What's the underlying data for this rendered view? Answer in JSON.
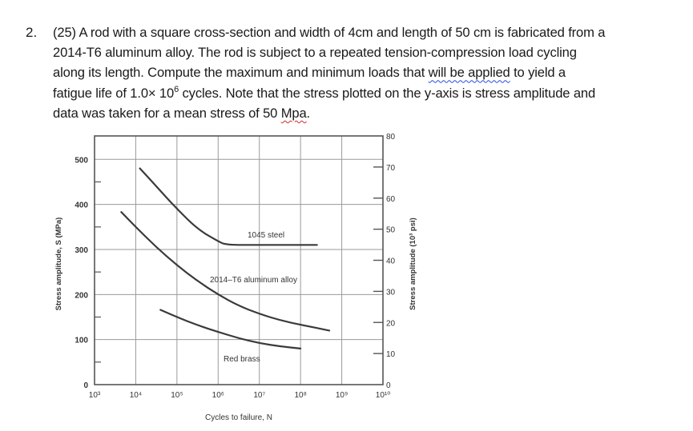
{
  "question": {
    "number": "2.",
    "lines": [
      "(25) A rod with a square cross-section and width of 4cm and length of 50 cm is fabricated from a",
      "2014-T6 aluminum alloy. The rod is subject to a repeated tension-compression load cycling",
      {
        "before": "along its length. Compute the maximum and minimum loads that ",
        "flagged": "will be applied",
        "after": " to yield a"
      },
      {
        "before": "fatigue life of 1.0× 10",
        "sup": "6",
        "after": " cycles. Note that the stress plotted on the y-axis is stress amplitude and"
      },
      {
        "before": "data was taken for a mean stress of 50 ",
        "flagged": "Mpa",
        "after": "."
      }
    ],
    "grammar_flag_color": "#2b4bd6",
    "spelling_flag_color": "#d42a2a"
  },
  "chart_data": {
    "type": "line",
    "title": "",
    "xlabel": "Cycles to failure, N",
    "ylabel": "Stress amplitude, S (MPa)",
    "ylabel_right": "Stress amplitude (10³ psi)",
    "x_scale": "log",
    "xlim": [
      1000,
      10000000000
    ],
    "x_ticks": [
      "10³",
      "10⁴",
      "10⁵",
      "10⁶",
      "10⁷",
      "10⁸",
      "10⁹",
      "10¹⁰"
    ],
    "ylim": [
      0,
      552
    ],
    "y_ticks": [
      0,
      100,
      200,
      300,
      400,
      500
    ],
    "y_ticks_right": [
      0,
      10,
      20,
      30,
      40,
      50,
      60,
      70,
      80
    ],
    "grid": true,
    "legend": "inline labels",
    "series": [
      {
        "name": "1045 steel",
        "x_log10": [
          4.1,
          4.5,
          5.0,
          5.5,
          6.0,
          6.2,
          7.0,
          8.0,
          8.4
        ],
        "y": [
          480,
          440,
          390,
          345,
          318,
          310,
          310,
          310,
          310
        ]
      },
      {
        "name": "2014–T6 aluminum alloy",
        "x_log10": [
          3.65,
          4.0,
          4.5,
          5.0,
          5.5,
          6.0,
          6.5,
          7.0,
          7.5,
          8.0,
          8.7
        ],
        "y": [
          383,
          350,
          305,
          265,
          230,
          200,
          175,
          157,
          143,
          133,
          120
        ]
      },
      {
        "name": "Red brass",
        "x_log10": [
          4.6,
          5.0,
          5.5,
          6.0,
          6.5,
          7.0,
          7.5,
          8.0
        ],
        "y": [
          166,
          150,
          132,
          117,
          103,
          92,
          85,
          80
        ]
      }
    ]
  }
}
